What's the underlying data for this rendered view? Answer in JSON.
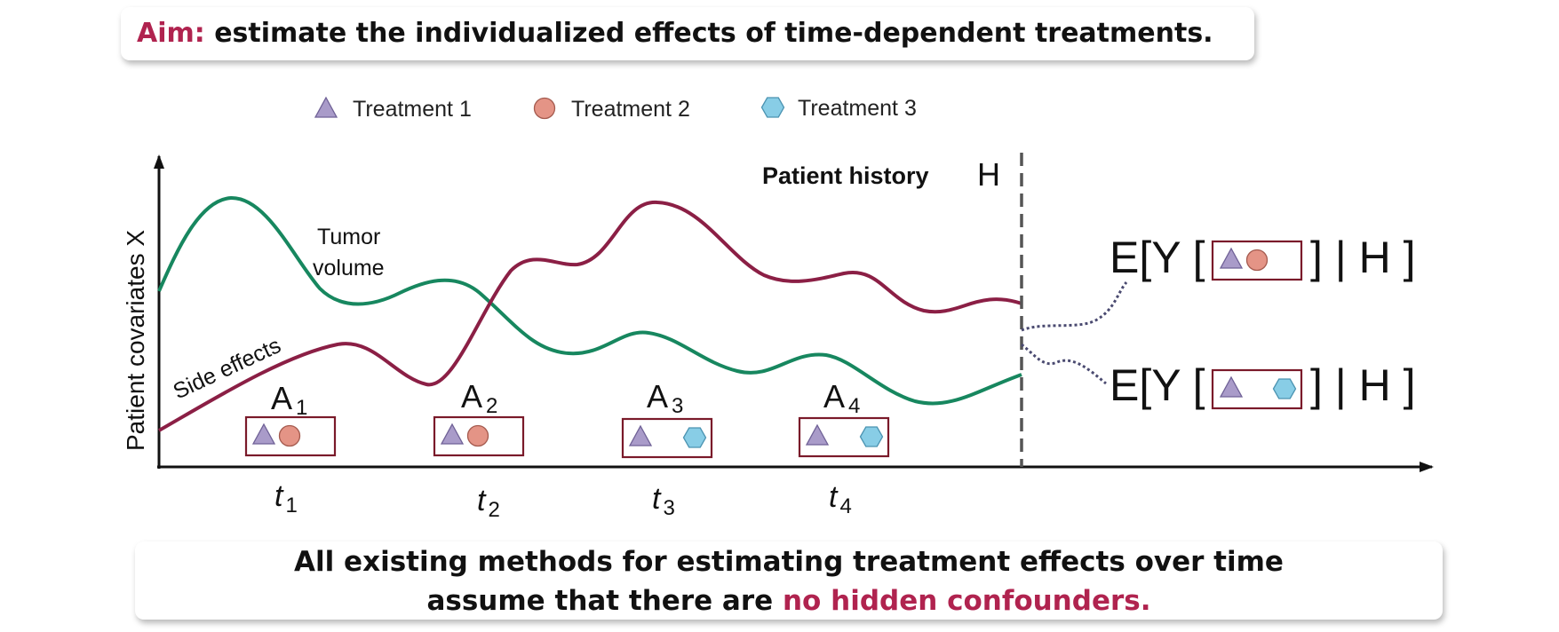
{
  "colors": {
    "accent": "#b0234f",
    "tumor_curve": "#17875f",
    "side_curve": "#8b1f45",
    "treatment_1": "#a99bc9",
    "treatment_2": "#e49486",
    "treatment_3": "#88cde6",
    "box_border": "#7a1a2a",
    "dotted_link": "#4a4a70"
  },
  "aim": {
    "label": "Aim:",
    "text": " estimate the individualized effects of time-dependent treatments."
  },
  "legend": [
    {
      "icon": "triangle",
      "label": "Treatment 1"
    },
    {
      "icon": "circle",
      "label": "Treatment 2"
    },
    {
      "icon": "hexagon",
      "label": "Treatment 3"
    }
  ],
  "axis": {
    "y_label": "Patient covariates X"
  },
  "curves": {
    "tumor_label_line1": "Tumor",
    "tumor_label_line2": "volume",
    "side_label": "Side effects"
  },
  "history": {
    "label": "Patient history",
    "symbol": "H"
  },
  "timesteps": [
    {
      "action": "A",
      "action_sub": "1",
      "time": "t",
      "time_sub": "1",
      "treatments": [
        "triangle",
        "circle"
      ]
    },
    {
      "action": "A",
      "action_sub": "2",
      "time": "t",
      "time_sub": "2",
      "treatments": [
        "triangle",
        "circle"
      ]
    },
    {
      "action": "A",
      "action_sub": "3",
      "time": "t",
      "time_sub": "3",
      "treatments": [
        "triangle",
        "hexagon"
      ]
    },
    {
      "action": "A",
      "action_sub": "4",
      "time": "t",
      "time_sub": "4",
      "treatments": [
        "triangle",
        "hexagon"
      ]
    }
  ],
  "outcomes": [
    {
      "prefix": "E[Y [",
      "suffix": "] | H ]",
      "treatments": [
        "triangle",
        "circle"
      ]
    },
    {
      "prefix": "E[Y [",
      "suffix": "] | H ]",
      "treatments": [
        "triangle",
        "hexagon"
      ]
    }
  ],
  "conclusion": {
    "line1": "All existing methods for estimating treatment effects over time",
    "line2_prefix": "assume that there are ",
    "line2_highlight": "no hidden confounders."
  }
}
